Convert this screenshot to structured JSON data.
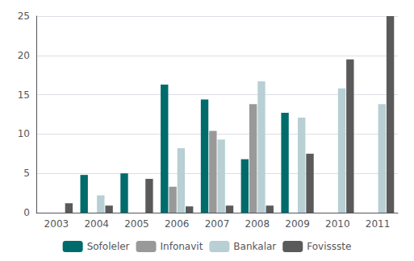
{
  "chart_data": {
    "type": "bar",
    "categories": [
      "2003",
      "2004",
      "2005",
      "2006",
      "2007",
      "2008",
      "2009",
      "2010",
      "2011"
    ],
    "series": [
      {
        "name": "Sofoleler",
        "color": "#006b6b",
        "values": [
          0.0,
          4.8,
          5.0,
          16.3,
          14.4,
          6.8,
          12.7,
          0.0,
          0.0
        ]
      },
      {
        "name": "Infonavit",
        "color": "#999999",
        "values": [
          0.0,
          0.0,
          0.0,
          3.3,
          10.4,
          13.8,
          0.0,
          0.0,
          0.0
        ]
      },
      {
        "name": "Bankalar",
        "color": "#b8cfd4",
        "values": [
          0.0,
          2.2,
          0.0,
          8.2,
          9.3,
          16.7,
          12.1,
          15.8,
          13.8
        ]
      },
      {
        "name": "Fovissste",
        "color": "#5a5a5a",
        "values": [
          1.2,
          0.9,
          4.3,
          0.8,
          0.9,
          0.9,
          7.5,
          19.5,
          25.0
        ]
      }
    ],
    "ylim": [
      0,
      25
    ],
    "yticks": [
      0,
      5,
      10,
      15,
      20,
      25
    ],
    "grid": true,
    "legend": "bottom"
  }
}
